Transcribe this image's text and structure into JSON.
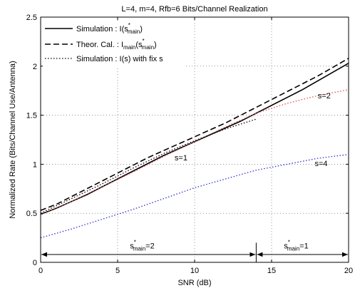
{
  "chart_data": {
    "type": "line",
    "title": "L=4, m=4, Rfb=6 Bits/Channel Realization",
    "xlabel": "SNR (dB)",
    "ylabel": "Normalized Rate (Bits/Channel Use/Antenna)",
    "xlim": [
      0,
      20
    ],
    "ylim": [
      0,
      2.5
    ],
    "xticks": [
      0,
      5,
      10,
      15,
      20
    ],
    "yticks": [
      0,
      0.5,
      1,
      1.5,
      2,
      2.5
    ],
    "xtick_labels": [
      "0",
      "5",
      "10",
      "15",
      "20"
    ],
    "ytick_labels": [
      "0",
      "0.5",
      "1",
      "1.5",
      "2",
      "2.5"
    ],
    "grid": true,
    "legend_position": "top-left",
    "legend": [
      {
        "style": "solid",
        "base": "Simulation : I(s",
        "sup": "*",
        "sub": "main",
        "tail": ")"
      },
      {
        "style": "dashed",
        "base": "Theor. Cal. : I",
        "sub": "main",
        "mid": "(s",
        "sup": "*",
        "sub2": "main",
        "tail": ")"
      },
      {
        "style": "dotted",
        "base": "Simulation : I(s) with fix s"
      }
    ],
    "series": [
      {
        "style": "solid",
        "color": "#000000",
        "x": [
          0,
          1,
          2,
          3,
          4,
          5,
          6,
          7,
          8,
          9,
          10,
          11,
          12,
          13,
          14,
          15,
          16,
          17,
          18,
          19,
          20
        ],
        "y": [
          0.49,
          0.55,
          0.62,
          0.69,
          0.77,
          0.85,
          0.93,
          1.01,
          1.09,
          1.16,
          1.23,
          1.3,
          1.37,
          1.44,
          1.52,
          1.6,
          1.68,
          1.76,
          1.85,
          1.94,
          2.03
        ]
      },
      {
        "style": "dashed",
        "color": "#000000",
        "x": [
          0,
          1,
          2,
          3,
          4,
          5,
          6,
          7,
          8,
          9,
          10,
          11,
          12,
          13,
          14,
          15,
          16,
          17,
          18,
          19,
          20
        ],
        "y": [
          0.53,
          0.59,
          0.67,
          0.75,
          0.83,
          0.91,
          0.99,
          1.07,
          1.14,
          1.21,
          1.28,
          1.35,
          1.42,
          1.5,
          1.58,
          1.66,
          1.74,
          1.82,
          1.9,
          1.99,
          2.08
        ]
      },
      {
        "style": "dotted",
        "color": "#e05050",
        "label": "s=2",
        "x": [
          0,
          2,
          4,
          6,
          8,
          10,
          12,
          14,
          16,
          18,
          20
        ],
        "y": [
          0.49,
          0.62,
          0.77,
          0.92,
          1.08,
          1.23,
          1.38,
          1.52,
          1.62,
          1.7,
          1.76
        ]
      },
      {
        "style": "dotted",
        "color": "#000000",
        "label": "s=1",
        "x": [
          0,
          2,
          4,
          6,
          8,
          10,
          12,
          14
        ],
        "y": [
          0.5,
          0.65,
          0.8,
          0.96,
          1.11,
          1.24,
          1.36,
          1.46
        ]
      },
      {
        "style": "dotted",
        "color": "#3030d0",
        "label": "s=4",
        "x": [
          0,
          2,
          4,
          6,
          8,
          10,
          12,
          14,
          16,
          18,
          20
        ],
        "y": [
          0.25,
          0.34,
          0.44,
          0.54,
          0.65,
          0.76,
          0.85,
          0.94,
          1.0,
          1.06,
          1.1
        ]
      }
    ],
    "labels": [
      {
        "text": "s=1",
        "x": 8.7,
        "y": 1.04
      },
      {
        "text": "s=2",
        "x": 18.0,
        "y": 1.67
      },
      {
        "text": "s=4",
        "x": 17.8,
        "y": 0.98
      }
    ],
    "regions": [
      {
        "from": 0,
        "to": 14,
        "y": 0.08,
        "label_base": "s",
        "label_sup": "*",
        "label_sub": "main",
        "label_tail": "=2",
        "label_x": 7,
        "label_y": 0.14
      },
      {
        "from": 14,
        "to": 20,
        "y": 0.08,
        "label_base": "s",
        "label_sup": "*",
        "label_sub": "main",
        "label_tail": "=1",
        "label_x": 17,
        "label_y": 0.14
      }
    ],
    "region_divider_x": 14
  }
}
